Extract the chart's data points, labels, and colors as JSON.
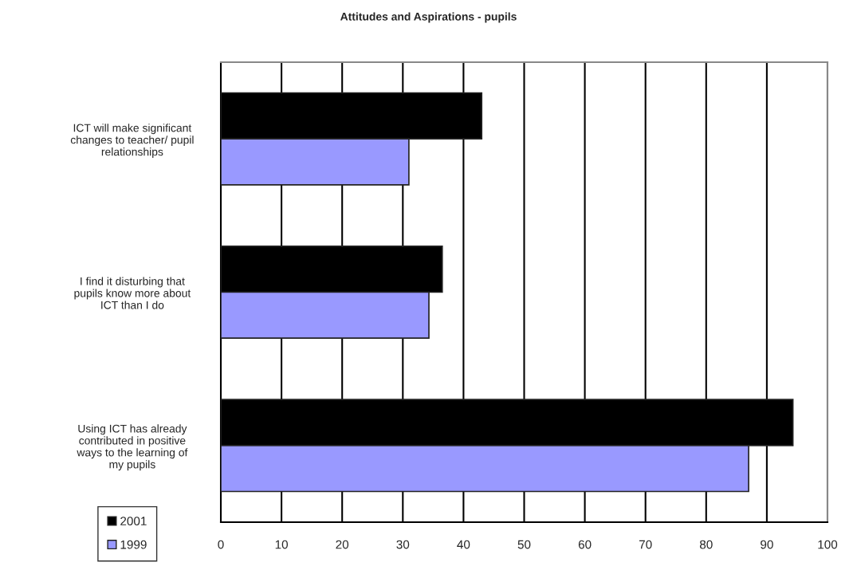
{
  "chart_data": {
    "type": "bar",
    "orientation": "horizontal",
    "title": "Attitudes and Aspirations - pupils",
    "categories": [
      "ICT will make significant\nchanges to teacher/ pupil\nrelationships",
      "I find it disturbing that\npupils know more about\nICT than I do",
      "Using ICT has already\ncontributed in positive\nways to the learning of\nmy pupils"
    ],
    "series": [
      {
        "name": "2001",
        "color": "#000000",
        "values": [
          43,
          36.5,
          94.3
        ]
      },
      {
        "name": "1999",
        "color": "#9999ff",
        "values": [
          31,
          34.3,
          87
        ]
      }
    ],
    "xlim": [
      0,
      100
    ],
    "xticks": [
      0,
      10,
      20,
      30,
      40,
      50,
      60,
      70,
      80,
      90,
      100
    ],
    "grid": "x",
    "legend": "bottom left"
  }
}
